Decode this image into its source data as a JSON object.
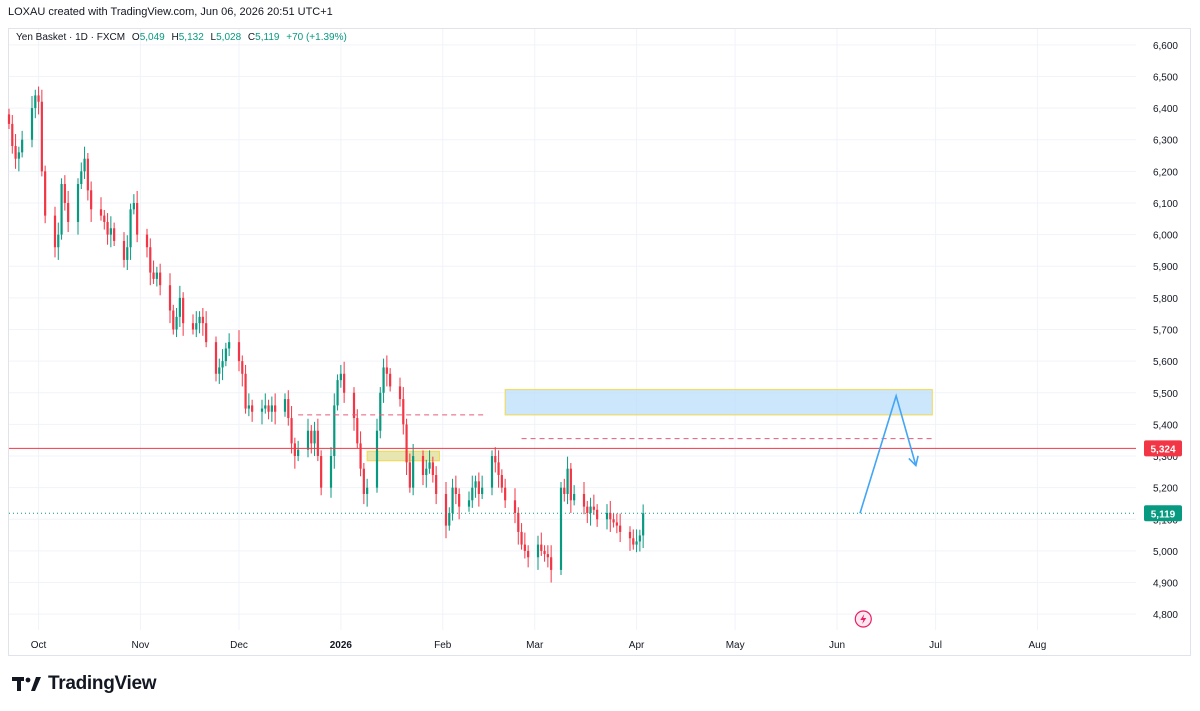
{
  "header": {
    "attribution": "LOXAU created with TradingView.com, Jun 06, 2026 20:51 UTC+1"
  },
  "legend": {
    "symbol": "Yen Basket · 1D · FXCM",
    "o_label": "O",
    "o_value": "5,049",
    "h_label": "H",
    "h_value": "5,132",
    "l_label": "L",
    "l_value": "5,028",
    "c_label": "C",
    "c_value": "5,119",
    "change": "+70 (+1.39%)"
  },
  "footer": {
    "brand": "TradingView"
  },
  "colors": {
    "up": "#089981",
    "down": "#f23645",
    "grid": "#f0f3fa",
    "resistance_line": "#f23645",
    "last_price": "#089981",
    "zone_fill": "#bbdefb",
    "zone_border": "#f2d94e",
    "arrow": "#42a5f5"
  },
  "chart_data": {
    "type": "candlestick",
    "symbol": "Yen Basket",
    "interval": "1D",
    "source": "FXCM",
    "ylim": [
      4750,
      6650
    ],
    "y_ticks": [
      4800,
      4900,
      5000,
      5100,
      5200,
      5300,
      5400,
      5500,
      5600,
      5700,
      5800,
      5900,
      6000,
      6100,
      6200,
      6300,
      6400,
      6500,
      6600
    ],
    "y_tick_labels": [
      "4,800",
      "4,900",
      "5,000",
      "5,100",
      "5,200",
      "5,300",
      "5,400",
      "5,500",
      "5,600",
      "5,700",
      "5,800",
      "5,900",
      "6,000",
      "6,100",
      "6,200",
      "6,300",
      "6,400",
      "6,500",
      "6,600"
    ],
    "x_range": [
      "2025-09-22",
      "2026-08-31"
    ],
    "x_ticks": [
      {
        "date": "2025-10-01",
        "label": "Oct",
        "bold": false
      },
      {
        "date": "2025-11-01",
        "label": "Nov",
        "bold": false
      },
      {
        "date": "2025-12-01",
        "label": "Dec",
        "bold": false
      },
      {
        "date": "2026-01-01",
        "label": "2026",
        "bold": true
      },
      {
        "date": "2026-02-01",
        "label": "Feb",
        "bold": false
      },
      {
        "date": "2026-03-01",
        "label": "Mar",
        "bold": false
      },
      {
        "date": "2026-04-01",
        "label": "Apr",
        "bold": false
      },
      {
        "date": "2026-05-01",
        "label": "May",
        "bold": false
      },
      {
        "date": "2026-06-01",
        "label": "Jun",
        "bold": false
      },
      {
        "date": "2026-07-01",
        "label": "Jul",
        "bold": false
      },
      {
        "date": "2026-08-01",
        "label": "Aug",
        "bold": false
      }
    ],
    "candle_start": "2025-09-22",
    "closes": [
      6350,
      6280,
      6240,
      6260,
      6300,
      6400,
      6440,
      6420,
      6200,
      6060,
      5960,
      6000,
      6160,
      6100,
      6040,
      6160,
      6200,
      6240,
      6140,
      6080,
      6060,
      6040,
      6000,
      6020,
      5980,
      5920,
      5960,
      6080,
      6100,
      6000,
      5960,
      5880,
      5860,
      5880,
      5840,
      5760,
      5700,
      5740,
      5800,
      5720,
      5700,
      5720,
      5740,
      5720,
      5660,
      5560,
      5580,
      5600,
      5640,
      5660,
      5600,
      5560,
      5450,
      5460,
      5440,
      5450,
      5460,
      5440,
      5460,
      5440,
      5480,
      5420,
      5340,
      5300,
      5320,
      5380,
      5340,
      5380,
      5300,
      5200,
      5300,
      5460,
      5540,
      5560,
      5500,
      5420,
      5340,
      5260,
      5180,
      5200,
      5380,
      5500,
      5580,
      5560,
      5520,
      5480,
      5400,
      5280,
      5200,
      5300,
      5240,
      5260,
      5280,
      5240,
      5180,
      5080,
      5120,
      5200,
      5180,
      5140,
      5160,
      5200,
      5220,
      5180,
      5200,
      5300,
      5280,
      5240,
      5200,
      5160,
      5120,
      5060,
      5020,
      5000,
      4980,
      5020,
      5000,
      4990,
      4980,
      4940,
      5200,
      5180,
      5260,
      5160,
      5180,
      5140,
      5120,
      5140,
      5130,
      5100,
      5120,
      5100,
      5090,
      5080,
      5060,
      5040,
      5020,
      5030,
      5049,
      5119
    ],
    "zone_box": {
      "x1": "2026-02-20",
      "x2": "2026-06-30",
      "y1": 5430,
      "y2": 5510
    },
    "zone_box_small": {
      "x1": "2026-01-09",
      "x2": "2026-01-31",
      "y1": 5285,
      "y2": 5315
    },
    "levels": [
      {
        "name": "resistance",
        "value": 5324,
        "label": "5,324",
        "style": "solid"
      },
      {
        "name": "last_price",
        "value": 5119,
        "label": "5,119",
        "style": "dotted"
      }
    ],
    "dashed_lines": [
      {
        "x1": "2025-12-19",
        "x2": "2026-02-14",
        "y": 5430
      },
      {
        "x1": "2026-02-25",
        "x2": "2026-06-30",
        "y": 5355
      }
    ],
    "projection_path": [
      {
        "date": "2026-06-08",
        "value": 5119
      },
      {
        "date": "2026-06-19",
        "value": 5490
      },
      {
        "date": "2026-06-25",
        "value": 5270
      }
    ]
  }
}
